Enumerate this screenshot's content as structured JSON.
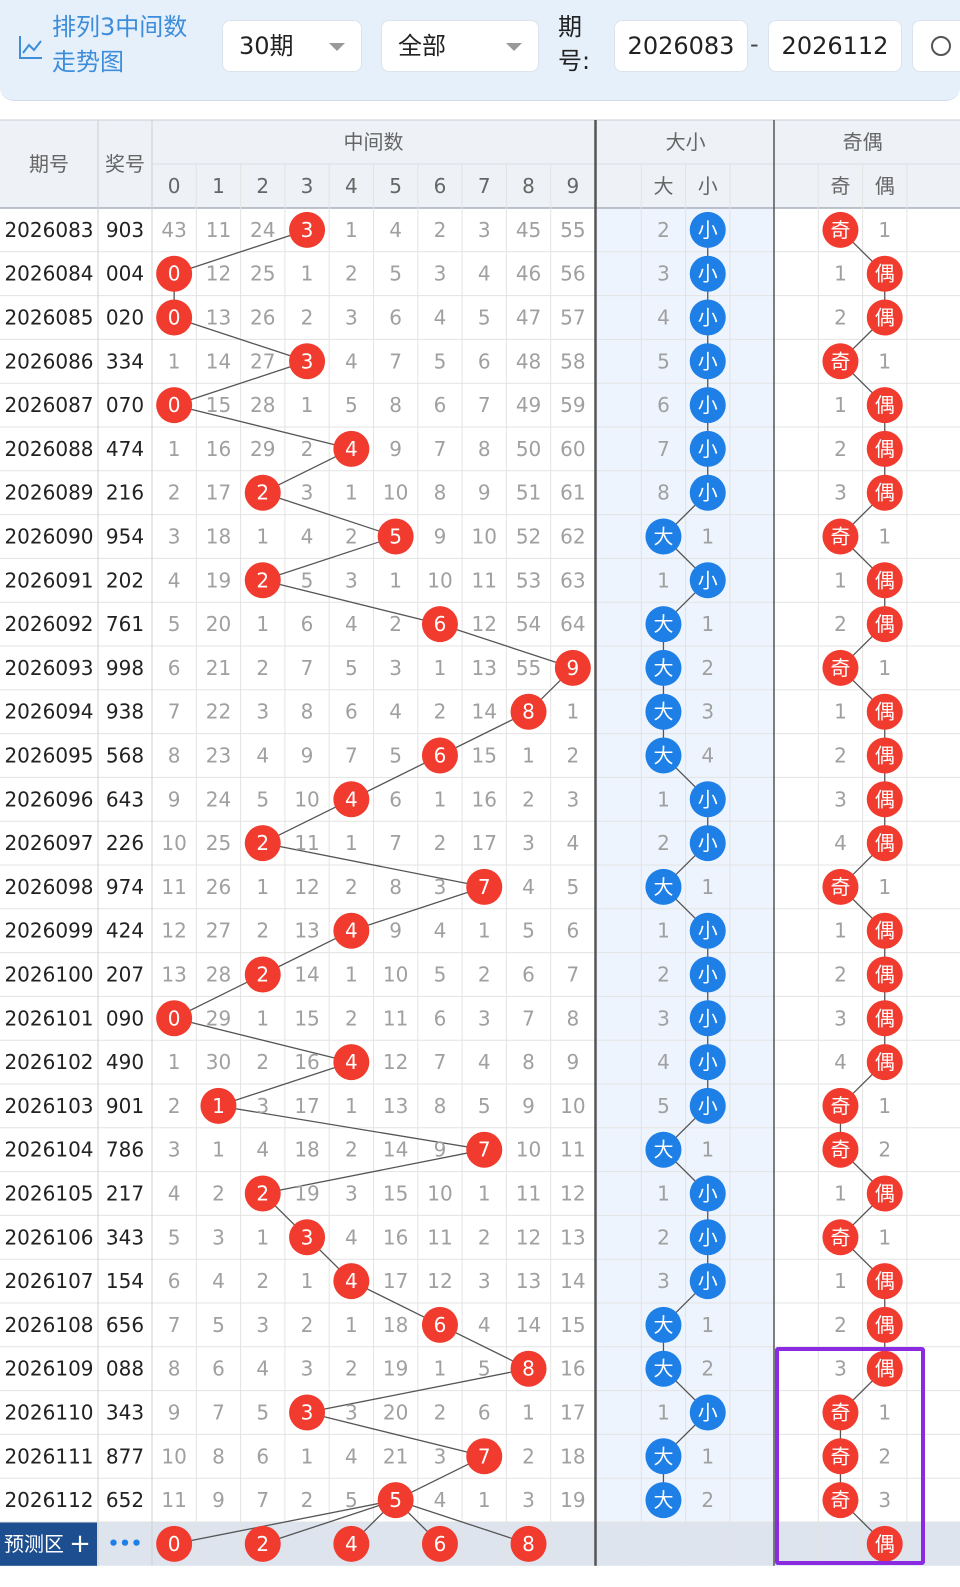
{
  "toolbar": {
    "title": "排列3中间数走势图",
    "icon": "trend-chart-icon",
    "period_select": "30期",
    "filter_select": "全部",
    "period_label": "期号:",
    "start_issue": "2026083",
    "end_issue": "2026112",
    "range_dash": "-",
    "search_icon": "search-icon"
  },
  "headers": {
    "issue": "期号",
    "number": "奖号",
    "middle": "中间数",
    "digits": [
      "0",
      "1",
      "2",
      "3",
      "4",
      "5",
      "6",
      "7",
      "8",
      "9"
    ],
    "size": "大小",
    "big": "大",
    "small": "小",
    "parity": "奇偶",
    "odd": "奇",
    "even": "偶"
  },
  "rows": [
    {
      "issue": "2026083",
      "number": "903",
      "digits": [
        43,
        11,
        24,
        "3",
        1,
        4,
        2,
        3,
        45,
        55
      ],
      "size": [
        2,
        "小"
      ],
      "parity": [
        "奇",
        1
      ]
    },
    {
      "issue": "2026084",
      "number": "004",
      "digits": [
        "0",
        12,
        25,
        1,
        2,
        5,
        3,
        4,
        46,
        56
      ],
      "size": [
        3,
        "小"
      ],
      "parity": [
        1,
        "偶"
      ]
    },
    {
      "issue": "2026085",
      "number": "020",
      "digits": [
        "0",
        13,
        26,
        2,
        3,
        6,
        4,
        5,
        47,
        57
      ],
      "size": [
        4,
        "小"
      ],
      "parity": [
        2,
        "偶"
      ]
    },
    {
      "issue": "2026086",
      "number": "334",
      "digits": [
        1,
        14,
        27,
        "3",
        4,
        7,
        5,
        6,
        48,
        58
      ],
      "size": [
        5,
        "小"
      ],
      "parity": [
        "奇",
        1
      ]
    },
    {
      "issue": "2026087",
      "number": "070",
      "digits": [
        "0",
        15,
        28,
        1,
        5,
        8,
        6,
        7,
        49,
        59
      ],
      "size": [
        6,
        "小"
      ],
      "parity": [
        1,
        "偶"
      ]
    },
    {
      "issue": "2026088",
      "number": "474",
      "digits": [
        1,
        16,
        29,
        2,
        "4",
        9,
        7,
        8,
        50,
        60
      ],
      "size": [
        7,
        "小"
      ],
      "parity": [
        2,
        "偶"
      ]
    },
    {
      "issue": "2026089",
      "number": "216",
      "digits": [
        2,
        17,
        "2",
        3,
        1,
        10,
        8,
        9,
        51,
        61
      ],
      "size": [
        8,
        "小"
      ],
      "parity": [
        3,
        "偶"
      ]
    },
    {
      "issue": "2026090",
      "number": "954",
      "digits": [
        3,
        18,
        1,
        4,
        2,
        "5",
        9,
        10,
        52,
        62
      ],
      "size": [
        "大",
        1
      ],
      "parity": [
        "奇",
        1
      ]
    },
    {
      "issue": "2026091",
      "number": "202",
      "digits": [
        4,
        19,
        "2",
        5,
        3,
        1,
        10,
        11,
        53,
        63
      ],
      "size": [
        1,
        "小"
      ],
      "parity": [
        1,
        "偶"
      ]
    },
    {
      "issue": "2026092",
      "number": "761",
      "digits": [
        5,
        20,
        1,
        6,
        4,
        2,
        "6",
        12,
        54,
        64
      ],
      "size": [
        "大",
        1
      ],
      "parity": [
        2,
        "偶"
      ]
    },
    {
      "issue": "2026093",
      "number": "998",
      "digits": [
        6,
        21,
        2,
        7,
        5,
        3,
        1,
        13,
        55,
        "9"
      ],
      "size": [
        "大",
        2
      ],
      "parity": [
        "奇",
        1
      ]
    },
    {
      "issue": "2026094",
      "number": "938",
      "digits": [
        7,
        22,
        3,
        8,
        6,
        4,
        2,
        14,
        "8",
        1
      ],
      "size": [
        "大",
        3
      ],
      "parity": [
        1,
        "偶"
      ]
    },
    {
      "issue": "2026095",
      "number": "568",
      "digits": [
        8,
        23,
        4,
        9,
        7,
        5,
        "6",
        15,
        1,
        2
      ],
      "size": [
        "大",
        4
      ],
      "parity": [
        2,
        "偶"
      ]
    },
    {
      "issue": "2026096",
      "number": "643",
      "digits": [
        9,
        24,
        5,
        10,
        "4",
        6,
        1,
        16,
        2,
        3
      ],
      "size": [
        1,
        "小"
      ],
      "parity": [
        3,
        "偶"
      ]
    },
    {
      "issue": "2026097",
      "number": "226",
      "digits": [
        10,
        25,
        "2",
        11,
        1,
        7,
        2,
        17,
        3,
        4
      ],
      "size": [
        2,
        "小"
      ],
      "parity": [
        4,
        "偶"
      ]
    },
    {
      "issue": "2026098",
      "number": "974",
      "digits": [
        11,
        26,
        1,
        12,
        2,
        8,
        3,
        "7",
        4,
        5
      ],
      "size": [
        "大",
        1
      ],
      "parity": [
        "奇",
        1
      ]
    },
    {
      "issue": "2026099",
      "number": "424",
      "digits": [
        12,
        27,
        2,
        13,
        "4",
        9,
        4,
        1,
        5,
        6
      ],
      "size": [
        1,
        "小"
      ],
      "parity": [
        1,
        "偶"
      ]
    },
    {
      "issue": "2026100",
      "number": "207",
      "digits": [
        13,
        28,
        "2",
        14,
        1,
        10,
        5,
        2,
        6,
        7
      ],
      "size": [
        2,
        "小"
      ],
      "parity": [
        2,
        "偶"
      ]
    },
    {
      "issue": "2026101",
      "number": "090",
      "digits": [
        "0",
        29,
        1,
        15,
        2,
        11,
        6,
        3,
        7,
        8
      ],
      "size": [
        3,
        "小"
      ],
      "parity": [
        3,
        "偶"
      ]
    },
    {
      "issue": "2026102",
      "number": "490",
      "digits": [
        1,
        30,
        2,
        16,
        "4",
        12,
        7,
        4,
        8,
        9
      ],
      "size": [
        4,
        "小"
      ],
      "parity": [
        4,
        "偶"
      ]
    },
    {
      "issue": "2026103",
      "number": "901",
      "digits": [
        2,
        "1",
        3,
        17,
        1,
        13,
        8,
        5,
        9,
        10
      ],
      "size": [
        5,
        "小"
      ],
      "parity": [
        "奇",
        1
      ]
    },
    {
      "issue": "2026104",
      "number": "786",
      "digits": [
        3,
        1,
        4,
        18,
        2,
        14,
        9,
        "7",
        10,
        11
      ],
      "size": [
        "大",
        1
      ],
      "parity": [
        "奇",
        2
      ]
    },
    {
      "issue": "2026105",
      "number": "217",
      "digits": [
        4,
        2,
        "2",
        19,
        3,
        15,
        10,
        1,
        11,
        12
      ],
      "size": [
        1,
        "小"
      ],
      "parity": [
        1,
        "偶"
      ]
    },
    {
      "issue": "2026106",
      "number": "343",
      "digits": [
        5,
        3,
        1,
        "3",
        4,
        16,
        11,
        2,
        12,
        13
      ],
      "size": [
        2,
        "小"
      ],
      "parity": [
        "奇",
        1
      ]
    },
    {
      "issue": "2026107",
      "number": "154",
      "digits": [
        6,
        4,
        2,
        1,
        "4",
        17,
        12,
        3,
        13,
        14
      ],
      "size": [
        3,
        "小"
      ],
      "parity": [
        1,
        "偶"
      ]
    },
    {
      "issue": "2026108",
      "number": "656",
      "digits": [
        7,
        5,
        3,
        2,
        1,
        18,
        "6",
        4,
        14,
        15
      ],
      "size": [
        "大",
        1
      ],
      "parity": [
        2,
        "偶"
      ]
    },
    {
      "issue": "2026109",
      "number": "088",
      "digits": [
        8,
        6,
        4,
        3,
        2,
        19,
        1,
        5,
        "8",
        16
      ],
      "size": [
        "大",
        2
      ],
      "parity": [
        3,
        "偶"
      ]
    },
    {
      "issue": "2026110",
      "number": "343",
      "digits": [
        9,
        7,
        5,
        "3",
        3,
        20,
        2,
        6,
        1,
        17
      ],
      "size": [
        1,
        "小"
      ],
      "parity": [
        "奇",
        1
      ]
    },
    {
      "issue": "2026111",
      "number": "877",
      "digits": [
        10,
        8,
        6,
        1,
        4,
        21,
        3,
        "7",
        2,
        18
      ],
      "size": [
        "大",
        1
      ],
      "parity": [
        "奇",
        2
      ]
    },
    {
      "issue": "2026112",
      "number": "652",
      "digits": [
        11,
        9,
        7,
        2,
        5,
        "5",
        4,
        1,
        3,
        19
      ],
      "size": [
        "大",
        2
      ],
      "parity": [
        "奇",
        3
      ]
    }
  ],
  "forecast": {
    "label": "预测区",
    "plus": "+",
    "more": "•••",
    "digits": [
      "0",
      "2",
      "4",
      "6",
      "8"
    ],
    "even": "偶"
  },
  "colors": {
    "red": "#f03b2e",
    "blue": "#1e7fe6",
    "line": "#555555",
    "header_bg": "#eef1f6",
    "size_bg": "#edf4fd",
    "highlight": "#8a2be2",
    "forecast_label_bg": "#1d4e8f"
  }
}
